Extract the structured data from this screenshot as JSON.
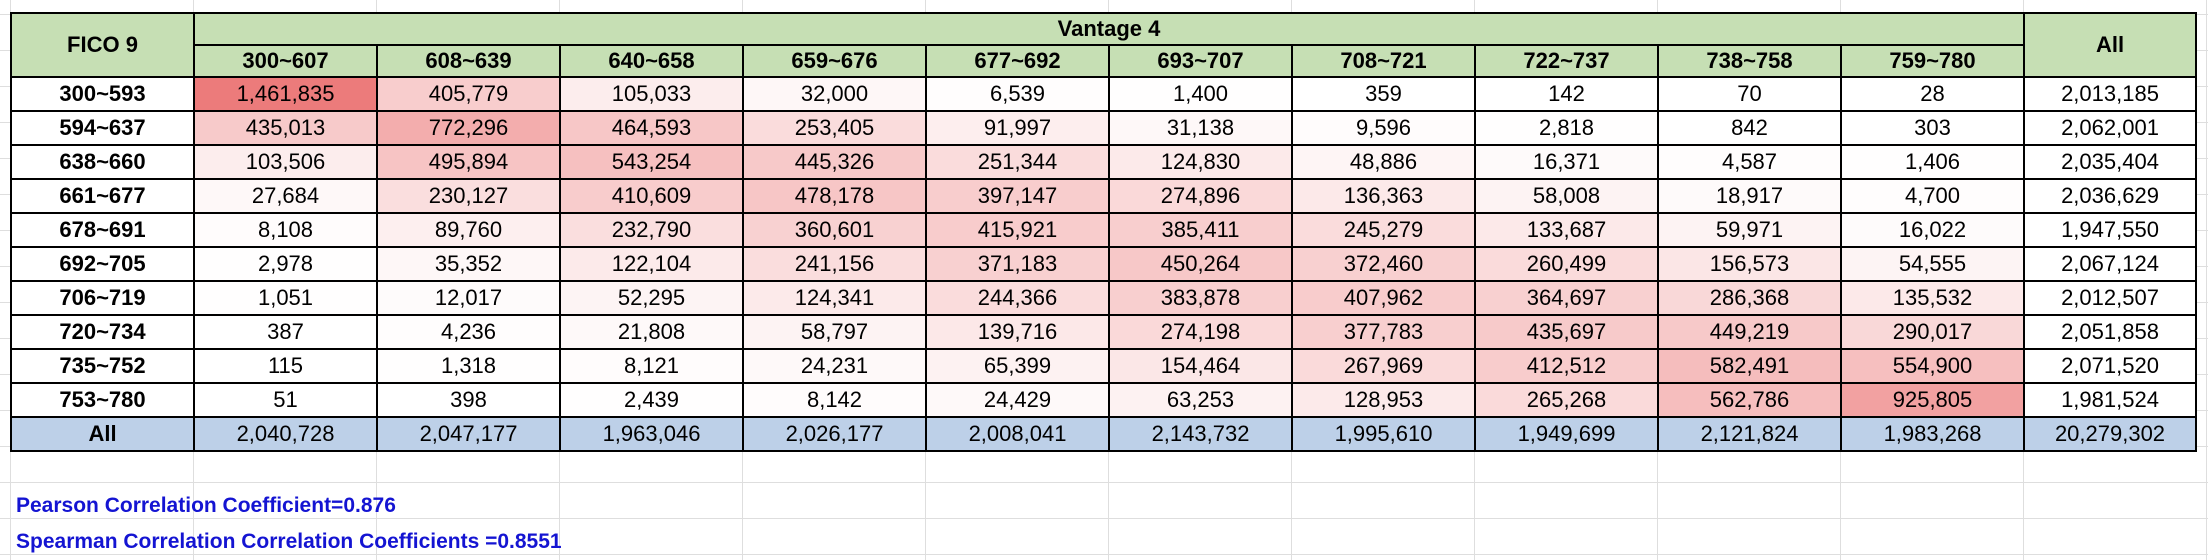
{
  "table": {
    "row_axis_label": "FICO 9",
    "col_axis_label": "Vantage 4",
    "all_label": "All",
    "columns": [
      "300~607",
      "608~639",
      "640~658",
      "659~676",
      "677~692",
      "693~707",
      "708~721",
      "722~737",
      "738~758",
      "759~780"
    ],
    "rows": [
      {
        "label": "300~593",
        "values": [
          "1,461,835",
          "405,779",
          "105,033",
          "32,000",
          "6,539",
          "1,400",
          "359",
          "142",
          "70",
          "28"
        ],
        "total": "2,013,185"
      },
      {
        "label": "594~637",
        "values": [
          "435,013",
          "772,296",
          "464,593",
          "253,405",
          "91,997",
          "31,138",
          "9,596",
          "2,818",
          "842",
          "303"
        ],
        "total": "2,062,001"
      },
      {
        "label": "638~660",
        "values": [
          "103,506",
          "495,894",
          "543,254",
          "445,326",
          "251,344",
          "124,830",
          "48,886",
          "16,371",
          "4,587",
          "1,406"
        ],
        "total": "2,035,404"
      },
      {
        "label": "661~677",
        "values": [
          "27,684",
          "230,127",
          "410,609",
          "478,178",
          "397,147",
          "274,896",
          "136,363",
          "58,008",
          "18,917",
          "4,700"
        ],
        "total": "2,036,629"
      },
      {
        "label": "678~691",
        "values": [
          "8,108",
          "89,760",
          "232,790",
          "360,601",
          "415,921",
          "385,411",
          "245,279",
          "133,687",
          "59,971",
          "16,022"
        ],
        "total": "1,947,550"
      },
      {
        "label": "692~705",
        "values": [
          "2,978",
          "35,352",
          "122,104",
          "241,156",
          "371,183",
          "450,264",
          "372,460",
          "260,499",
          "156,573",
          "54,555"
        ],
        "total": "2,067,124"
      },
      {
        "label": "706~719",
        "values": [
          "1,051",
          "12,017",
          "52,295",
          "124,341",
          "244,366",
          "383,878",
          "407,962",
          "364,697",
          "286,368",
          "135,532"
        ],
        "total": "2,012,507"
      },
      {
        "label": "720~734",
        "values": [
          "387",
          "4,236",
          "21,808",
          "58,797",
          "139,716",
          "274,198",
          "377,783",
          "435,697",
          "449,219",
          "290,017"
        ],
        "total": "2,051,858"
      },
      {
        "label": "735~752",
        "values": [
          "115",
          "1,318",
          "8,121",
          "24,231",
          "65,399",
          "154,464",
          "267,969",
          "412,512",
          "582,491",
          "554,900"
        ],
        "total": "2,071,520"
      },
      {
        "label": "753~780",
        "values": [
          "51",
          "398",
          "2,439",
          "8,142",
          "24,429",
          "63,253",
          "128,953",
          "265,268",
          "562,786",
          "925,805"
        ],
        "total": "1,981,524"
      }
    ],
    "column_totals": [
      "2,040,728",
      "2,047,177",
      "1,963,046",
      "2,026,177",
      "2,008,041",
      "2,143,732",
      "1,995,610",
      "1,949,699",
      "2,121,824",
      "1,983,268"
    ],
    "grand_total": "20,279,302"
  },
  "notes": {
    "pearson": "Pearson Correlation Coefficient=0.876",
    "spearman": "Spearman Correlation Correlation Coefficients =0.8551"
  },
  "colors": {
    "header_fill": "#c6dfb4",
    "total_fill": "#bdd0e8",
    "heat_max": "#ec7b7b",
    "heat_min": "#ffffff",
    "note_text": "#1414d2"
  }
}
